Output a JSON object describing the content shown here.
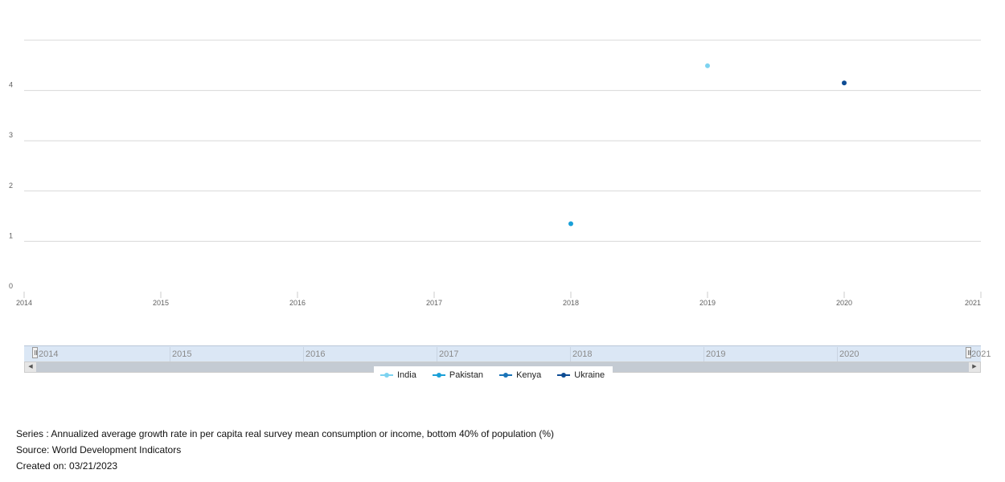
{
  "chart_data": {
    "type": "scatter",
    "x_ticks": [
      "2014",
      "2015",
      "2016",
      "2017",
      "2018",
      "2019",
      "2020",
      "2021"
    ],
    "y_ticks": [
      "0",
      "1",
      "2",
      "3",
      "4"
    ],
    "xlim": [
      2014,
      2021
    ],
    "ylim": [
      0,
      5
    ],
    "grid": true,
    "legend_position": "bottom",
    "series": [
      {
        "name": "India",
        "color": "#7dd3f0",
        "points": [
          {
            "x": 2019,
            "y": 4.49
          }
        ]
      },
      {
        "name": "Pakistan",
        "color": "#1aa0d8",
        "points": [
          {
            "x": 2018,
            "y": 1.35
          }
        ]
      },
      {
        "name": "Kenya",
        "color": "#1a74b8",
        "points": []
      },
      {
        "name": "Ukraine",
        "color": "#0d4c94",
        "points": [
          {
            "x": 2020,
            "y": 4.15
          }
        ]
      }
    ]
  },
  "navigator": {
    "labels": [
      "2014",
      "2015",
      "2016",
      "2017",
      "2018",
      "2019",
      "2020",
      "2021"
    ]
  },
  "footer": {
    "series_text": "Series : Annualized average growth rate in per capita real survey mean consumption or income, bottom 40% of population (%)",
    "source_text": "Source: World Development Indicators",
    "created_text": "Created on: 03/21/2023"
  }
}
